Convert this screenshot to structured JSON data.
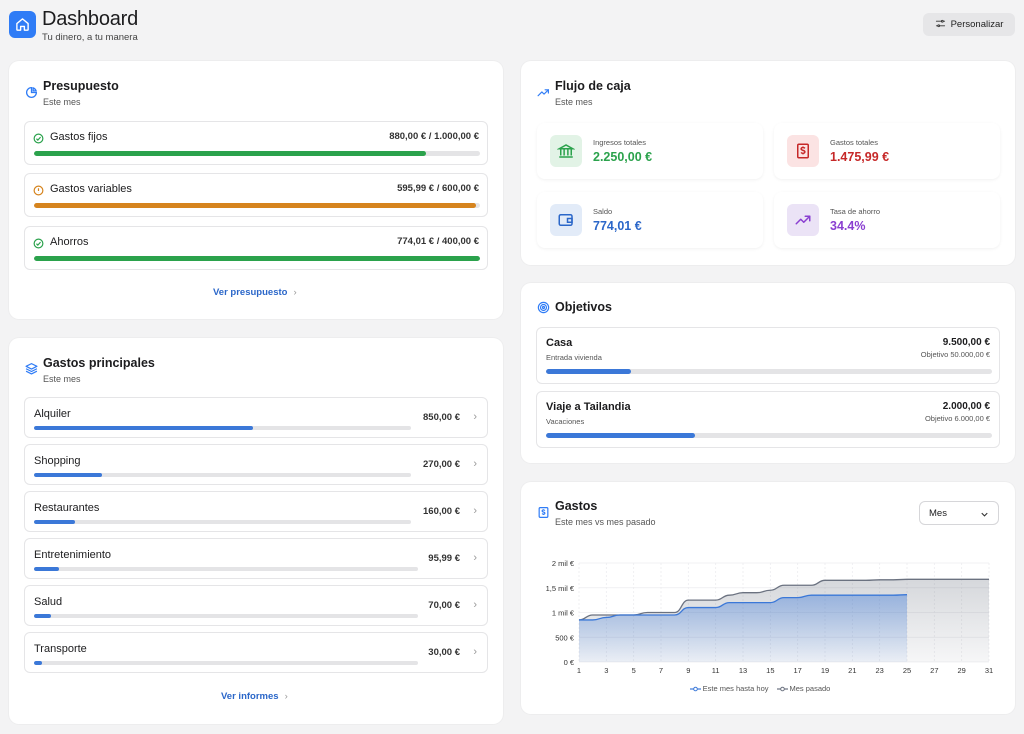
{
  "header": {
    "title": "Dashboard",
    "subtitle": "Tu dinero, a tu manera",
    "personalize_label": "Personalizar"
  },
  "budget": {
    "title": "Presupuesto",
    "subtitle": "Este mes",
    "items": [
      {
        "label": "Gastos fijos",
        "value": "880,00 € / 1.000,00 €",
        "progress": 0.88,
        "status": "ok",
        "color": "#2ba24c"
      },
      {
        "label": "Gastos variables",
        "value": "595,99 € / 600,00 €",
        "progress": 0.99,
        "status": "warning",
        "color": "#d6841e"
      },
      {
        "label": "Ahorros",
        "value": "774,01 € / 400,00 €",
        "progress": 1.0,
        "status": "ok",
        "color": "#2ba24c"
      }
    ],
    "link": "Ver presupuesto"
  },
  "top_expenses": {
    "title": "Gastos principales",
    "subtitle": "Este mes",
    "items": [
      {
        "label": "Alquiler",
        "value": "850,00 €",
        "progress": 0.58
      },
      {
        "label": "Shopping",
        "value": "270,00 €",
        "progress": 0.18
      },
      {
        "label": "Restaurantes",
        "value": "160,00 €",
        "progress": 0.11
      },
      {
        "label": "Entretenimiento",
        "value": "95,99 €",
        "progress": 0.065
      },
      {
        "label": "Salud",
        "value": "70,00 €",
        "progress": 0.045
      },
      {
        "label": "Transporte",
        "value": "30,00 €",
        "progress": 0.02
      }
    ],
    "link": "Ver informes"
  },
  "cashflow": {
    "title": "Flujo de caja",
    "subtitle": "Este mes",
    "stats": [
      {
        "label": "Ingresos totales",
        "value": "2.250,00 €",
        "color": "#2ba24c",
        "icon": "bank-icon"
      },
      {
        "label": "Gastos totales",
        "value": "1.475,99 €",
        "color": "#c62828",
        "icon": "dollar-bill-icon"
      },
      {
        "label": "Saldo",
        "value": "774,01 €",
        "color": "#2b67c9",
        "icon": "wallet-icon"
      },
      {
        "label": "Tasa de ahorro",
        "value": "34.4%",
        "color": "#8a3fd1",
        "icon": "trend-up-icon"
      }
    ]
  },
  "goals": {
    "title": "Objetivos",
    "items": [
      {
        "name": "Casa",
        "sub": "Entrada vivienda",
        "value": "9.500,00 €",
        "goal": "Objetivo 50.000,00 €",
        "progress": 0.19
      },
      {
        "name": "Viaje a Tailandia",
        "sub": "Vacaciones",
        "value": "2.000,00 €",
        "goal": "Objetivo 6.000,00 €",
        "progress": 0.333
      }
    ]
  },
  "expenses_chart": {
    "title": "Gastos",
    "subtitle": "Este mes vs mes pasado",
    "period_select": "Mes"
  },
  "chart_data": {
    "type": "area",
    "xlabel": "",
    "ylabel": "",
    "x_ticks": [
      "1",
      "3",
      "5",
      "7",
      "9",
      "11",
      "13",
      "15",
      "17",
      "19",
      "21",
      "23",
      "25",
      "27",
      "29",
      "31"
    ],
    "y_ticks": [
      "0 €",
      "500 €",
      "1 mil €",
      "1,5 mil €",
      "2 mil €"
    ],
    "ylim": [
      0,
      2000
    ],
    "xlim": [
      1,
      31
    ],
    "grid": true,
    "legend_position": "bottom",
    "series": [
      {
        "name": "Este mes hasta hoy",
        "color": "#3b78d8",
        "points": [
          [
            1,
            850
          ],
          [
            2,
            850
          ],
          [
            3,
            900
          ],
          [
            4,
            950
          ],
          [
            5,
            950
          ],
          [
            6,
            950
          ],
          [
            7,
            950
          ],
          [
            8,
            950
          ],
          [
            9,
            1100
          ],
          [
            10,
            1100
          ],
          [
            11,
            1100
          ],
          [
            12,
            1200
          ],
          [
            13,
            1200
          ],
          [
            14,
            1200
          ],
          [
            15,
            1200
          ],
          [
            16,
            1300
          ],
          [
            17,
            1300
          ],
          [
            18,
            1350
          ],
          [
            19,
            1350
          ],
          [
            20,
            1350
          ],
          [
            21,
            1350
          ],
          [
            22,
            1350
          ],
          [
            23,
            1350
          ],
          [
            24,
            1350
          ],
          [
            25,
            1360
          ]
        ]
      },
      {
        "name": "Mes pasado",
        "color": "#6b7280",
        "points": [
          [
            1,
            850
          ],
          [
            2,
            950
          ],
          [
            3,
            950
          ],
          [
            4,
            950
          ],
          [
            5,
            950
          ],
          [
            6,
            1000
          ],
          [
            7,
            1000
          ],
          [
            8,
            1000
          ],
          [
            9,
            1250
          ],
          [
            10,
            1250
          ],
          [
            11,
            1250
          ],
          [
            12,
            1350
          ],
          [
            13,
            1400
          ],
          [
            14,
            1400
          ],
          [
            15,
            1450
          ],
          [
            16,
            1550
          ],
          [
            17,
            1550
          ],
          [
            18,
            1550
          ],
          [
            19,
            1650
          ],
          [
            20,
            1650
          ],
          [
            21,
            1650
          ],
          [
            22,
            1650
          ],
          [
            23,
            1660
          ],
          [
            24,
            1660
          ],
          [
            25,
            1670
          ],
          [
            26,
            1670
          ],
          [
            27,
            1670
          ],
          [
            28,
            1670
          ],
          [
            29,
            1670
          ],
          [
            30,
            1670
          ],
          [
            31,
            1670
          ]
        ]
      }
    ]
  }
}
